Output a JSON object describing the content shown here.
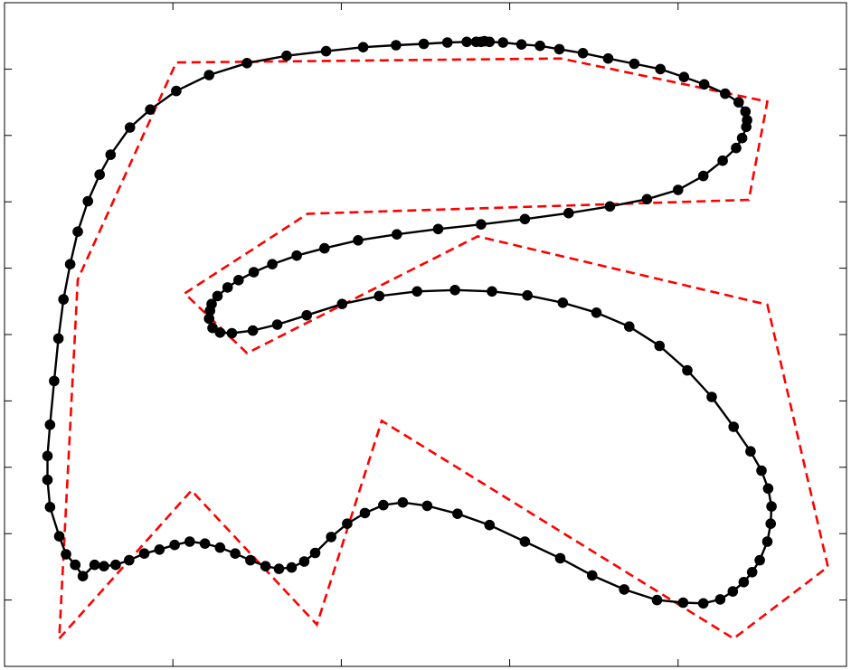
{
  "chart_data": {
    "type": "line",
    "title": "",
    "xlabel": "",
    "ylabel": "",
    "xlim": [
      0,
      100
    ],
    "ylim": [
      0,
      100
    ],
    "grid": false,
    "legend": "none",
    "x_ticks": [
      20,
      40,
      60,
      80
    ],
    "y_ticks": [
      10,
      20,
      30,
      40,
      50,
      60,
      70,
      80,
      90
    ],
    "series": [
      {
        "role": "control-polygon",
        "style": "dashed",
        "color": "#ff0000",
        "points": [
          [
            6.5,
            4.2
          ],
          [
            22.2,
            26.5
          ],
          [
            37.1,
            6.3
          ],
          [
            44.8,
            37.0
          ],
          [
            86.6,
            4.2
          ],
          [
            97.8,
            15.0
          ],
          [
            90.6,
            54.5
          ],
          [
            56.2,
            64.8
          ],
          [
            28.8,
            47.2
          ],
          [
            21.4,
            56.2
          ],
          [
            36.0,
            68.2
          ],
          [
            88.4,
            70.3
          ],
          [
            90.6,
            85.1
          ],
          [
            66.1,
            91.6
          ],
          [
            20.4,
            91.0
          ],
          [
            8.7,
            58.3
          ],
          [
            6.5,
            4.2
          ]
        ]
      },
      {
        "role": "curve-samples",
        "style": "solid-with-markers",
        "color": "#000000",
        "points": [
          [
            8.4,
            15.3
          ],
          [
            9.3,
            13.6
          ],
          [
            10.7,
            15.3
          ],
          [
            11.8,
            15.1
          ],
          [
            13.2,
            15.3
          ],
          [
            14.8,
            16.0
          ],
          [
            16.6,
            17.0
          ],
          [
            18.4,
            17.6
          ],
          [
            20.2,
            18.3
          ],
          [
            22.0,
            18.8
          ],
          [
            23.8,
            18.5
          ],
          [
            25.6,
            17.9
          ],
          [
            27.4,
            17.0
          ],
          [
            29.2,
            16.0
          ],
          [
            31.0,
            15.1
          ],
          [
            32.6,
            14.7
          ],
          [
            34.1,
            14.9
          ],
          [
            35.6,
            15.8
          ],
          [
            36.9,
            17.1
          ],
          [
            38.8,
            19.5
          ],
          [
            40.7,
            21.5
          ],
          [
            42.8,
            23.1
          ],
          [
            45.0,
            24.3
          ],
          [
            47.3,
            24.7
          ],
          [
            50.2,
            24.2
          ],
          [
            53.8,
            23.0
          ],
          [
            57.6,
            21.3
          ],
          [
            61.8,
            18.8
          ],
          [
            66.0,
            16.3
          ],
          [
            69.8,
            13.7
          ],
          [
            73.6,
            11.6
          ],
          [
            77.5,
            10.0
          ],
          [
            80.6,
            9.6
          ],
          [
            83.0,
            9.5
          ],
          [
            85.0,
            10.1
          ],
          [
            86.5,
            11.3
          ],
          [
            87.8,
            12.7
          ],
          [
            88.8,
            14.2
          ],
          [
            89.7,
            16.0
          ],
          [
            90.6,
            18.8
          ],
          [
            91.0,
            21.5
          ],
          [
            91.1,
            24.1
          ],
          [
            90.7,
            26.8
          ],
          [
            89.9,
            29.5
          ],
          [
            88.6,
            32.4
          ],
          [
            86.6,
            36.1
          ],
          [
            84.0,
            40.6
          ],
          [
            81.1,
            44.6
          ],
          [
            77.8,
            48.3
          ],
          [
            74.2,
            51.2
          ],
          [
            70.3,
            53.3
          ],
          [
            66.3,
            54.8
          ],
          [
            62.1,
            55.9
          ],
          [
            57.9,
            56.5
          ],
          [
            53.5,
            56.7
          ],
          [
            49.0,
            56.5
          ],
          [
            44.5,
            55.8
          ],
          [
            40.1,
            54.6
          ],
          [
            35.9,
            52.9
          ],
          [
            32.4,
            51.5
          ],
          [
            29.5,
            50.6
          ],
          [
            27.0,
            50.2
          ],
          [
            25.6,
            50.3
          ],
          [
            24.7,
            51.0
          ],
          [
            24.3,
            52.4
          ],
          [
            24.4,
            53.6
          ],
          [
            24.6,
            54.6
          ],
          [
            25.3,
            55.8
          ],
          [
            26.5,
            57.1
          ],
          [
            27.8,
            58.2
          ],
          [
            29.6,
            59.4
          ],
          [
            31.8,
            60.6
          ],
          [
            34.7,
            61.9
          ],
          [
            38.0,
            63.0
          ],
          [
            42.0,
            64.2
          ],
          [
            46.6,
            65.1
          ],
          [
            51.5,
            65.9
          ],
          [
            56.6,
            66.6
          ],
          [
            61.8,
            67.4
          ],
          [
            67.0,
            68.3
          ],
          [
            71.9,
            69.3
          ],
          [
            76.3,
            70.4
          ],
          [
            80.0,
            71.8
          ],
          [
            83.0,
            73.9
          ],
          [
            85.3,
            76.2
          ],
          [
            86.9,
            78.1
          ],
          [
            87.6,
            79.6
          ],
          [
            88.1,
            81.3
          ],
          [
            88.2,
            82.3
          ],
          [
            88.0,
            83.6
          ],
          [
            87.2,
            85.0
          ],
          [
            85.6,
            86.3
          ],
          [
            83.1,
            87.7
          ],
          [
            80.7,
            88.8
          ],
          [
            77.9,
            90.0
          ],
          [
            74.8,
            90.8
          ],
          [
            71.7,
            91.6
          ],
          [
            68.7,
            92.4
          ],
          [
            65.9,
            93.0
          ],
          [
            63.6,
            93.5
          ],
          [
            61.4,
            93.7
          ],
          [
            59.2,
            94.0
          ],
          [
            57.6,
            94.1
          ],
          [
            57.0,
            94.2
          ],
          [
            56.6,
            94.1
          ],
          [
            56.0,
            94.1
          ],
          [
            54.9,
            94.1
          ],
          [
            52.6,
            94.0
          ],
          [
            49.8,
            93.8
          ],
          [
            46.5,
            93.6
          ],
          [
            42.6,
            93.3
          ],
          [
            38.2,
            92.7
          ],
          [
            33.5,
            92.0
          ],
          [
            28.8,
            90.9
          ],
          [
            24.3,
            89.1
          ],
          [
            20.4,
            86.7
          ],
          [
            17.3,
            83.9
          ],
          [
            14.9,
            81.2
          ],
          [
            12.6,
            77.1
          ],
          [
            11.3,
            74.1
          ],
          [
            9.9,
            70.1
          ],
          [
            8.7,
            65.5
          ],
          [
            7.8,
            60.6
          ],
          [
            7.0,
            55.3
          ],
          [
            6.4,
            49.4
          ],
          [
            5.9,
            43.0
          ],
          [
            5.4,
            36.4
          ],
          [
            5.1,
            31.7
          ],
          [
            5.1,
            28.1
          ],
          [
            5.4,
            24.0
          ],
          [
            6.5,
            19.6
          ],
          [
            7.3,
            16.9
          ],
          [
            8.4,
            15.3
          ]
        ]
      }
    ]
  }
}
